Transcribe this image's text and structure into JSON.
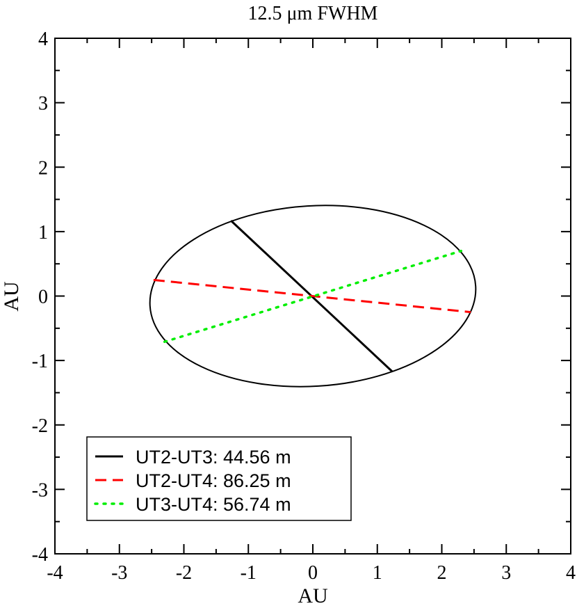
{
  "chart_data": {
    "type": "line",
    "title": "12.5 μm FWHM",
    "xlabel": "AU",
    "ylabel": "AU",
    "xlim": [
      -4,
      4
    ],
    "ylim": [
      -4,
      4
    ],
    "xticks": [
      -4,
      -3,
      -2,
      -1,
      0,
      1,
      2,
      3,
      4
    ],
    "yticks": [
      -4,
      -3,
      -2,
      -1,
      0,
      1,
      2,
      3,
      4
    ],
    "xtick_labels": [
      "-4",
      "-3",
      "-2",
      "-1",
      "0",
      "1",
      "2",
      "3",
      "4"
    ],
    "ytick_labels": [
      "-4",
      "-3",
      "-2",
      "-1",
      "0",
      "1",
      "2",
      "3",
      "4"
    ],
    "grid": false,
    "legend_position": "bottom-left",
    "ellipse": {
      "name": "FWHM ellipse",
      "color": "#000000",
      "semi_major": 2.53,
      "semi_minor": 1.4,
      "angle_deg": 3.5
    },
    "series": [
      {
        "name": "UT2-UT3: 44.56 m",
        "style": "solid",
        "color": "#000000",
        "x": [
          -1.27,
          1.23
        ],
        "y": [
          1.17,
          -1.17
        ]
      },
      {
        "name": "UT2-UT4: 86.25 m",
        "style": "dashed",
        "color": "#ff0000",
        "x": [
          -2.47,
          2.45
        ],
        "y": [
          0.25,
          -0.25
        ]
      },
      {
        "name": "UT3-UT4: 56.74 m",
        "style": "dotted",
        "color": "#00ee00",
        "x": [
          -2.3,
          2.3
        ],
        "y": [
          -0.71,
          0.7
        ]
      }
    ]
  }
}
